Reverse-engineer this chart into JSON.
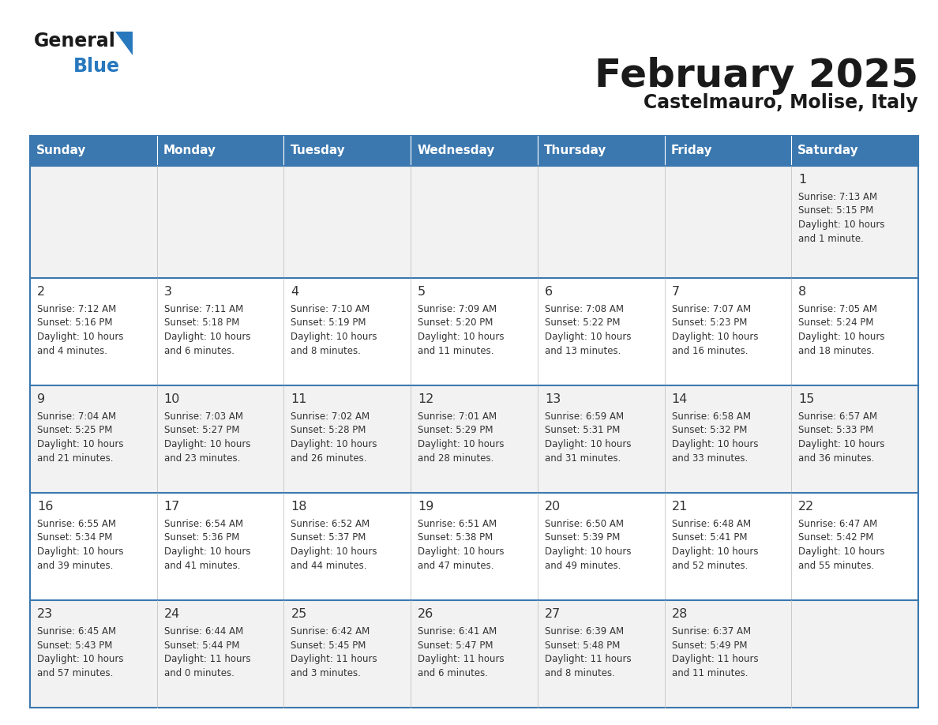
{
  "title": "February 2025",
  "subtitle": "Castelmauro, Molise, Italy",
  "header_bg": "#3b78b0",
  "header_text": "#ffffff",
  "days": [
    "Sunday",
    "Monday",
    "Tuesday",
    "Wednesday",
    "Thursday",
    "Friday",
    "Saturday"
  ],
  "row_bg_odd": "#f2f2f2",
  "row_bg_even": "#ffffff",
  "border_color": "#3b78b0",
  "thin_border_color": "#bbbbbb",
  "text_color": "#333333",
  "day_num_color": "#333333",
  "calendar": [
    [
      null,
      null,
      null,
      null,
      null,
      null,
      {
        "day": "1",
        "rise": "7:13 AM",
        "set": "5:15 PM",
        "daylight": "10 hours",
        "daylight2": "and 1 minute."
      }
    ],
    [
      {
        "day": "2",
        "rise": "7:12 AM",
        "set": "5:16 PM",
        "daylight": "10 hours",
        "daylight2": "and 4 minutes."
      },
      {
        "day": "3",
        "rise": "7:11 AM",
        "set": "5:18 PM",
        "daylight": "10 hours",
        "daylight2": "and 6 minutes."
      },
      {
        "day": "4",
        "rise": "7:10 AM",
        "set": "5:19 PM",
        "daylight": "10 hours",
        "daylight2": "and 8 minutes."
      },
      {
        "day": "5",
        "rise": "7:09 AM",
        "set": "5:20 PM",
        "daylight": "10 hours",
        "daylight2": "and 11 minutes."
      },
      {
        "day": "6",
        "rise": "7:08 AM",
        "set": "5:22 PM",
        "daylight": "10 hours",
        "daylight2": "and 13 minutes."
      },
      {
        "day": "7",
        "rise": "7:07 AM",
        "set": "5:23 PM",
        "daylight": "10 hours",
        "daylight2": "and 16 minutes."
      },
      {
        "day": "8",
        "rise": "7:05 AM",
        "set": "5:24 PM",
        "daylight": "10 hours",
        "daylight2": "and 18 minutes."
      }
    ],
    [
      {
        "day": "9",
        "rise": "7:04 AM",
        "set": "5:25 PM",
        "daylight": "10 hours",
        "daylight2": "and 21 minutes."
      },
      {
        "day": "10",
        "rise": "7:03 AM",
        "set": "5:27 PM",
        "daylight": "10 hours",
        "daylight2": "and 23 minutes."
      },
      {
        "day": "11",
        "rise": "7:02 AM",
        "set": "5:28 PM",
        "daylight": "10 hours",
        "daylight2": "and 26 minutes."
      },
      {
        "day": "12",
        "rise": "7:01 AM",
        "set": "5:29 PM",
        "daylight": "10 hours",
        "daylight2": "and 28 minutes."
      },
      {
        "day": "13",
        "rise": "6:59 AM",
        "set": "5:31 PM",
        "daylight": "10 hours",
        "daylight2": "and 31 minutes."
      },
      {
        "day": "14",
        "rise": "6:58 AM",
        "set": "5:32 PM",
        "daylight": "10 hours",
        "daylight2": "and 33 minutes."
      },
      {
        "day": "15",
        "rise": "6:57 AM",
        "set": "5:33 PM",
        "daylight": "10 hours",
        "daylight2": "and 36 minutes."
      }
    ],
    [
      {
        "day": "16",
        "rise": "6:55 AM",
        "set": "5:34 PM",
        "daylight": "10 hours",
        "daylight2": "and 39 minutes."
      },
      {
        "day": "17",
        "rise": "6:54 AM",
        "set": "5:36 PM",
        "daylight": "10 hours",
        "daylight2": "and 41 minutes."
      },
      {
        "day": "18",
        "rise": "6:52 AM",
        "set": "5:37 PM",
        "daylight": "10 hours",
        "daylight2": "and 44 minutes."
      },
      {
        "day": "19",
        "rise": "6:51 AM",
        "set": "5:38 PM",
        "daylight": "10 hours",
        "daylight2": "and 47 minutes."
      },
      {
        "day": "20",
        "rise": "6:50 AM",
        "set": "5:39 PM",
        "daylight": "10 hours",
        "daylight2": "and 49 minutes."
      },
      {
        "day": "21",
        "rise": "6:48 AM",
        "set": "5:41 PM",
        "daylight": "10 hours",
        "daylight2": "and 52 minutes."
      },
      {
        "day": "22",
        "rise": "6:47 AM",
        "set": "5:42 PM",
        "daylight": "10 hours",
        "daylight2": "and 55 minutes."
      }
    ],
    [
      {
        "day": "23",
        "rise": "6:45 AM",
        "set": "5:43 PM",
        "daylight": "10 hours",
        "daylight2": "and 57 minutes."
      },
      {
        "day": "24",
        "rise": "6:44 AM",
        "set": "5:44 PM",
        "daylight": "11 hours",
        "daylight2": "and 0 minutes."
      },
      {
        "day": "25",
        "rise": "6:42 AM",
        "set": "5:45 PM",
        "daylight": "11 hours",
        "daylight2": "and 3 minutes."
      },
      {
        "day": "26",
        "rise": "6:41 AM",
        "set": "5:47 PM",
        "daylight": "11 hours",
        "daylight2": "and 6 minutes."
      },
      {
        "day": "27",
        "rise": "6:39 AM",
        "set": "5:48 PM",
        "daylight": "11 hours",
        "daylight2": "and 8 minutes."
      },
      {
        "day": "28",
        "rise": "6:37 AM",
        "set": "5:49 PM",
        "daylight": "11 hours",
        "daylight2": "and 11 minutes."
      },
      null
    ]
  ],
  "logo_color1": "#1a1a1a",
  "logo_color2": "#2878be",
  "logo_triangle_color": "#2878be",
  "fig_width": 11.88,
  "fig_height": 9.18,
  "fig_dpi": 100
}
